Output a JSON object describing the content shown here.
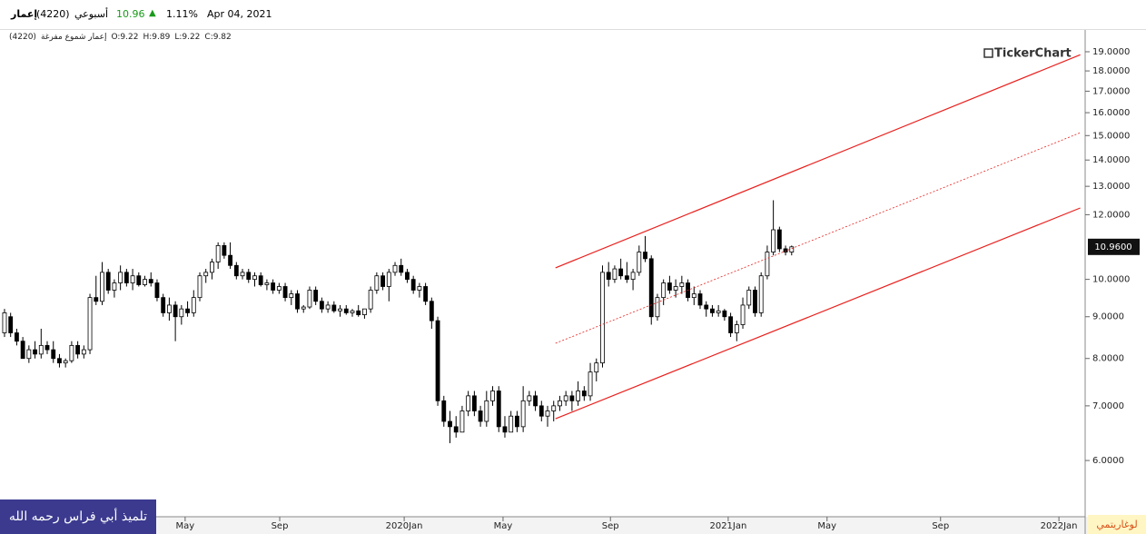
{
  "header": {
    "name": "إعمار",
    "code": "(4220)",
    "period": "أسبوعي",
    "price": 10.96,
    "change": "1.11%",
    "date": "Apr 04, 2021"
  },
  "subheader": {
    "title": "إعمار شموع مفرغة",
    "code": "(4220)",
    "open": "O:9.22",
    "high": "H:9.89",
    "low": "L:9.22",
    "close": "C:9.82"
  },
  "watermark": "TickerChart",
  "footer_note": "تلميذ أبي فراس رحمه الله",
  "chart_data": {
    "type": "candlestick",
    "log_scale": true,
    "scale_label": "لوغاريتمي",
    "up_color": "#ffffff",
    "down_color": "#000000",
    "trendline_color": "#e8211e",
    "ylim": [
      5.12,
      20.1
    ],
    "yticks": [
      {
        "value": 6,
        "label": "6.0000"
      },
      {
        "value": 7,
        "label": "7.0000"
      },
      {
        "value": 8,
        "label": "8.0000"
      },
      {
        "value": 9,
        "label": "9.0000"
      },
      {
        "value": 10,
        "label": "10.0000"
      },
      {
        "value": 12,
        "label": "12.0000"
      },
      {
        "value": 13,
        "label": "13.0000"
      },
      {
        "value": 14,
        "label": "14.0000"
      },
      {
        "value": 15,
        "label": "15.0000"
      },
      {
        "value": 16,
        "label": "16.0000"
      },
      {
        "value": 17,
        "label": "17.0000"
      },
      {
        "value": 18,
        "label": "18.0000"
      },
      {
        "value": 19,
        "label": "19.0000"
      }
    ],
    "xlim": [
      -0.74,
      177.1
    ],
    "xticks": [
      {
        "value": 29.6,
        "label": "May"
      },
      {
        "value": 45.1,
        "label": "Sep"
      },
      {
        "value": 65.5,
        "label": "2020Jan"
      },
      {
        "value": 81.7,
        "label": "May"
      },
      {
        "value": 99.3,
        "label": "Sep"
      },
      {
        "value": 118.6,
        "label": "2021Jan"
      },
      {
        "value": 134.8,
        "label": "May"
      },
      {
        "value": 153.4,
        "label": "Sep"
      },
      {
        "value": 172.8,
        "label": "2022Jan"
      }
    ],
    "last_price": {
      "value": 10.96,
      "label": "10.9600"
    },
    "trendlines": [
      {
        "x": [
          90.3,
          176.3
        ],
        "y": [
          10.33,
          18.84
        ],
        "dashed": false
      },
      {
        "x": [
          90.3,
          176.3
        ],
        "y": [
          8.35,
          15.12
        ],
        "dashed": true
      },
      {
        "x": [
          90.3,
          176.3
        ],
        "y": [
          6.75,
          12.23
        ],
        "dashed": false
      }
    ],
    "candles": [
      [
        8.6,
        9.2,
        8.5,
        9.1
      ],
      [
        9.0,
        9.1,
        8.5,
        8.6
      ],
      [
        8.6,
        8.7,
        8.3,
        8.4
      ],
      [
        8.4,
        8.5,
        8.0,
        8.0
      ],
      [
        8.0,
        8.3,
        7.9,
        8.2
      ],
      [
        8.2,
        8.4,
        8.0,
        8.1
      ],
      [
        8.1,
        8.7,
        8.0,
        8.3
      ],
      [
        8.3,
        8.4,
        8.1,
        8.2
      ],
      [
        8.2,
        8.4,
        7.9,
        8.0
      ],
      [
        8.0,
        8.1,
        7.8,
        7.9
      ],
      [
        7.9,
        8.0,
        7.8,
        7.95
      ],
      [
        7.95,
        8.4,
        7.9,
        8.3
      ],
      [
        8.3,
        8.4,
        8.0,
        8.1
      ],
      [
        8.1,
        8.3,
        8.0,
        8.2
      ],
      [
        8.2,
        9.6,
        8.1,
        9.5
      ],
      [
        9.5,
        10.1,
        9.3,
        9.4
      ],
      [
        9.4,
        10.5,
        9.3,
        10.2
      ],
      [
        10.2,
        10.3,
        9.6,
        9.7
      ],
      [
        9.7,
        10.0,
        9.5,
        9.9
      ],
      [
        9.9,
        10.4,
        9.7,
        10.2
      ],
      [
        10.2,
        10.3,
        9.8,
        9.9
      ],
      [
        9.9,
        10.3,
        9.7,
        10.1
      ],
      [
        10.1,
        10.2,
        9.8,
        9.85
      ],
      [
        9.85,
        10.1,
        9.8,
        10.0
      ],
      [
        10.0,
        10.2,
        9.8,
        9.9
      ],
      [
        9.9,
        10.0,
        9.4,
        9.5
      ],
      [
        9.5,
        9.6,
        9.0,
        9.1
      ],
      [
        9.1,
        9.5,
        8.9,
        9.3
      ],
      [
        9.3,
        9.4,
        8.4,
        9.0
      ],
      [
        9.0,
        9.3,
        8.8,
        9.2
      ],
      [
        9.2,
        9.4,
        9.0,
        9.1
      ],
      [
        9.1,
        9.7,
        9.0,
        9.5
      ],
      [
        9.5,
        10.2,
        9.4,
        10.1
      ],
      [
        10.1,
        10.3,
        9.9,
        10.2
      ],
      [
        10.2,
        10.6,
        10.0,
        10.5
      ],
      [
        10.5,
        11.1,
        10.3,
        11.0
      ],
      [
        11.0,
        11.1,
        10.6,
        10.7
      ],
      [
        10.7,
        11.1,
        10.3,
        10.4
      ],
      [
        10.4,
        10.5,
        10.0,
        10.1
      ],
      [
        10.1,
        10.3,
        10.0,
        10.2
      ],
      [
        10.2,
        10.3,
        9.9,
        10.0
      ],
      [
        10.0,
        10.2,
        9.8,
        10.1
      ],
      [
        10.1,
        10.2,
        9.8,
        9.85
      ],
      [
        9.85,
        10.0,
        9.7,
        9.9
      ],
      [
        9.9,
        10.0,
        9.6,
        9.7
      ],
      [
        9.7,
        9.9,
        9.6,
        9.8
      ],
      [
        9.8,
        9.9,
        9.4,
        9.5
      ],
      [
        9.5,
        9.7,
        9.3,
        9.6
      ],
      [
        9.6,
        9.7,
        9.1,
        9.2
      ],
      [
        9.2,
        9.3,
        9.1,
        9.25
      ],
      [
        9.25,
        9.8,
        9.2,
        9.7
      ],
      [
        9.7,
        9.8,
        9.3,
        9.4
      ],
      [
        9.4,
        9.5,
        9.1,
        9.2
      ],
      [
        9.2,
        9.4,
        9.1,
        9.3
      ],
      [
        9.3,
        9.4,
        9.1,
        9.15
      ],
      [
        9.15,
        9.3,
        9.0,
        9.2
      ],
      [
        9.2,
        9.3,
        9.05,
        9.1
      ],
      [
        9.1,
        9.2,
        9.0,
        9.15
      ],
      [
        9.15,
        9.3,
        9.0,
        9.05
      ],
      [
        9.05,
        9.2,
        8.95,
        9.2
      ],
      [
        9.2,
        9.8,
        9.1,
        9.7
      ],
      [
        9.7,
        10.2,
        9.6,
        10.1
      ],
      [
        10.1,
        10.2,
        9.7,
        9.8
      ],
      [
        9.8,
        10.3,
        9.4,
        10.2
      ],
      [
        10.2,
        10.5,
        10.1,
        10.4
      ],
      [
        10.4,
        10.6,
        10.1,
        10.2
      ],
      [
        10.2,
        10.3,
        9.9,
        10.0
      ],
      [
        10.0,
        10.1,
        9.6,
        9.7
      ],
      [
        9.7,
        9.9,
        9.5,
        9.8
      ],
      [
        9.8,
        9.9,
        9.3,
        9.4
      ],
      [
        9.4,
        9.5,
        8.7,
        8.9
      ],
      [
        8.9,
        9.0,
        7.0,
        7.1
      ],
      [
        7.1,
        7.2,
        6.6,
        6.7
      ],
      [
        6.7,
        6.9,
        6.3,
        6.6
      ],
      [
        6.6,
        6.8,
        6.4,
        6.5
      ],
      [
        6.5,
        7.0,
        6.5,
        6.9
      ],
      [
        6.9,
        7.3,
        6.8,
        7.2
      ],
      [
        7.2,
        7.3,
        6.8,
        6.9
      ],
      [
        6.9,
        7.0,
        6.6,
        6.7
      ],
      [
        6.7,
        7.3,
        6.6,
        7.1
      ],
      [
        7.1,
        7.4,
        7.0,
        7.3
      ],
      [
        7.3,
        7.4,
        6.5,
        6.6
      ],
      [
        6.6,
        6.8,
        6.4,
        6.5
      ],
      [
        6.5,
        6.9,
        6.5,
        6.8
      ],
      [
        6.8,
        6.9,
        6.5,
        6.6
      ],
      [
        6.6,
        7.4,
        6.5,
        7.1
      ],
      [
        7.1,
        7.3,
        7.0,
        7.2
      ],
      [
        7.2,
        7.3,
        6.9,
        7.0
      ],
      [
        7.0,
        7.1,
        6.7,
        6.8
      ],
      [
        6.8,
        7.0,
        6.6,
        6.9
      ],
      [
        6.9,
        7.1,
        6.7,
        7.0
      ],
      [
        7.0,
        7.2,
        6.9,
        7.1
      ],
      [
        7.1,
        7.3,
        7.0,
        7.2
      ],
      [
        7.2,
        7.3,
        6.9,
        7.1
      ],
      [
        7.1,
        7.5,
        7.0,
        7.3
      ],
      [
        7.3,
        7.4,
        7.1,
        7.2
      ],
      [
        7.2,
        7.9,
        7.1,
        7.7
      ],
      [
        7.7,
        8.0,
        7.5,
        7.9
      ],
      [
        7.9,
        10.4,
        7.8,
        10.2
      ],
      [
        10.2,
        10.5,
        9.8,
        10.0
      ],
      [
        10.0,
        10.4,
        9.9,
        10.3
      ],
      [
        10.3,
        10.6,
        10.0,
        10.1
      ],
      [
        10.1,
        10.5,
        9.9,
        10.0
      ],
      [
        10.0,
        10.3,
        9.7,
        10.2
      ],
      [
        10.2,
        11.0,
        10.1,
        10.8
      ],
      [
        10.8,
        11.3,
        10.5,
        10.6
      ],
      [
        10.6,
        10.7,
        8.8,
        9.0
      ],
      [
        9.0,
        9.6,
        8.9,
        9.5
      ],
      [
        9.5,
        10.0,
        9.3,
        9.9
      ],
      [
        9.9,
        10.1,
        9.6,
        9.7
      ],
      [
        9.7,
        10.0,
        9.5,
        9.8
      ],
      [
        9.8,
        10.1,
        9.6,
        9.9
      ],
      [
        9.9,
        10.0,
        9.4,
        9.5
      ],
      [
        9.5,
        9.8,
        9.3,
        9.6
      ],
      [
        9.6,
        9.7,
        9.2,
        9.3
      ],
      [
        9.3,
        9.4,
        9.0,
        9.2
      ],
      [
        9.2,
        9.3,
        9.0,
        9.1
      ],
      [
        9.1,
        9.3,
        9.0,
        9.15
      ],
      [
        9.15,
        9.2,
        8.9,
        9.0
      ],
      [
        9.0,
        9.1,
        8.5,
        8.6
      ],
      [
        8.6,
        8.9,
        8.4,
        8.8
      ],
      [
        8.8,
        9.5,
        8.7,
        9.3
      ],
      [
        9.3,
        9.8,
        9.2,
        9.7
      ],
      [
        9.7,
        9.8,
        9.0,
        9.1
      ],
      [
        9.1,
        10.2,
        9.0,
        10.1
      ],
      [
        10.1,
        11.0,
        10.0,
        10.8
      ],
      [
        10.8,
        12.5,
        10.7,
        11.5
      ],
      [
        11.5,
        11.6,
        10.8,
        10.9
      ],
      [
        10.9,
        11.0,
        10.7,
        10.8
      ],
      [
        10.8,
        11.0,
        10.7,
        10.96
      ]
    ]
  }
}
